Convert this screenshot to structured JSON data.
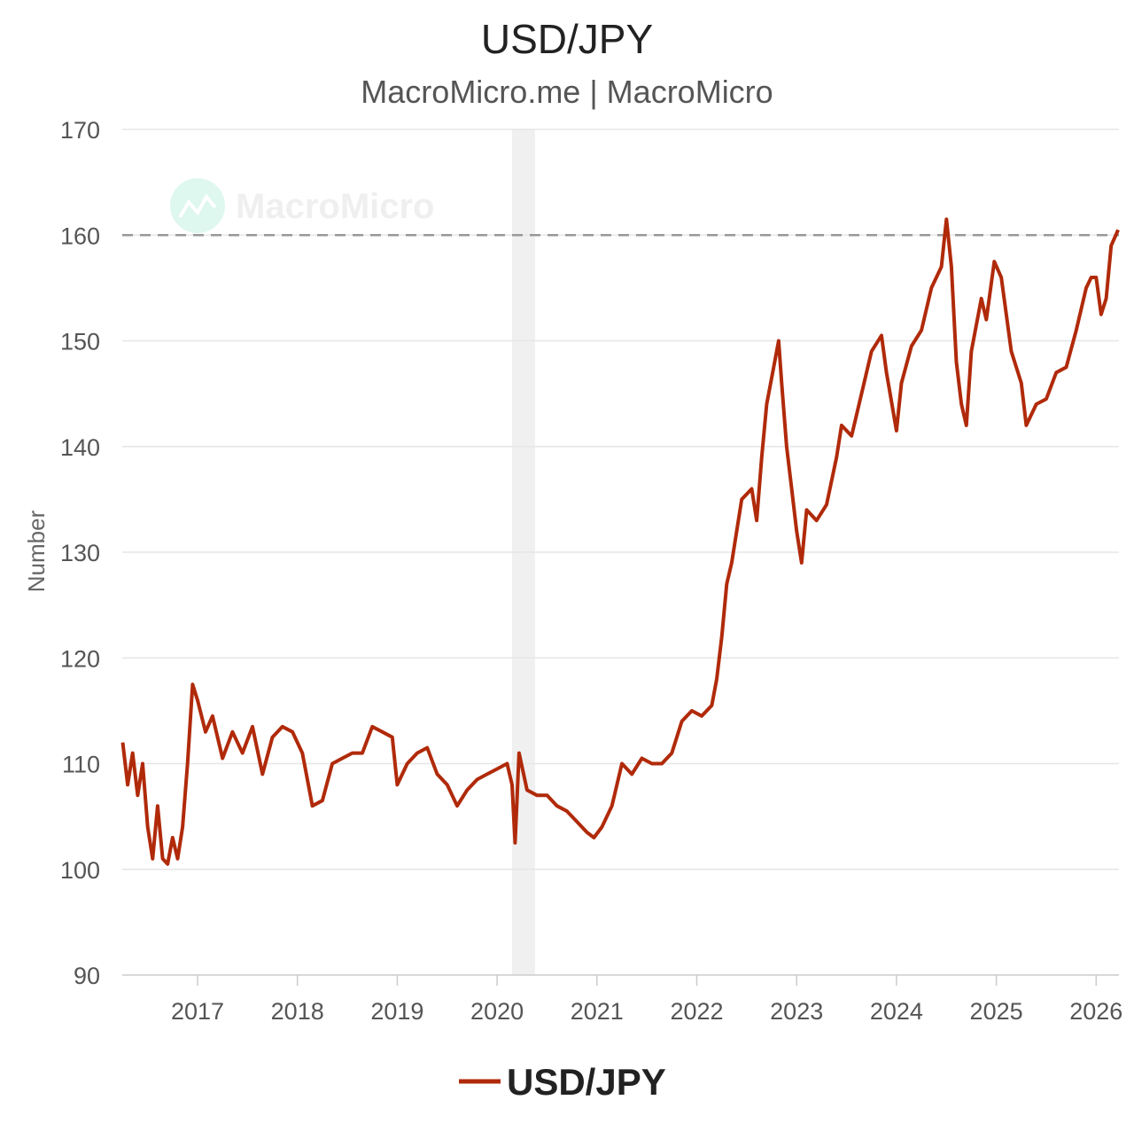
{
  "chart_data": {
    "type": "line",
    "title": "USD/JPY",
    "subtitle": "MacroMicro.me | MacroMicro",
    "watermark": "MacroMicro",
    "ylabel": "Number",
    "xlabel": "",
    "ylim": [
      90,
      170
    ],
    "xlim": [
      2016.25,
      2026.23
    ],
    "yticks": [
      90,
      100,
      110,
      120,
      130,
      140,
      150,
      160,
      170
    ],
    "xticks": [
      "2017",
      "2018",
      "2019",
      "2020",
      "2021",
      "2022",
      "2023",
      "2024",
      "2025",
      "2026"
    ],
    "grid": true,
    "legend_placement": "bottom",
    "reference_line": {
      "value": 160,
      "style": "dashed",
      "color": "#999999"
    },
    "shaded_period": {
      "start": 2020.15,
      "end": 2020.38,
      "color": "#f0f0f0"
    },
    "series": [
      {
        "name": "USD/JPY",
        "color": "#b02a0a",
        "x": [
          2016.25,
          2016.3,
          2016.35,
          2016.4,
          2016.45,
          2016.5,
          2016.55,
          2016.6,
          2016.65,
          2016.7,
          2016.75,
          2016.8,
          2016.85,
          2016.9,
          2016.95,
          2017.0,
          2017.08,
          2017.15,
          2017.25,
          2017.35,
          2017.45,
          2017.55,
          2017.65,
          2017.75,
          2017.85,
          2017.95,
          2018.05,
          2018.15,
          2018.25,
          2018.35,
          2018.45,
          2018.55,
          2018.65,
          2018.75,
          2018.85,
          2018.95,
          2019.0,
          2019.1,
          2019.2,
          2019.3,
          2019.4,
          2019.5,
          2019.6,
          2019.7,
          2019.8,
          2019.9,
          2020.0,
          2020.1,
          2020.15,
          2020.18,
          2020.22,
          2020.3,
          2020.4,
          2020.5,
          2020.6,
          2020.7,
          2020.8,
          2020.9,
          2020.97,
          2021.05,
          2021.15,
          2021.25,
          2021.35,
          2021.45,
          2021.55,
          2021.65,
          2021.75,
          2021.85,
          2021.95,
          2022.05,
          2022.15,
          2022.2,
          2022.25,
          2022.3,
          2022.35,
          2022.45,
          2022.55,
          2022.6,
          2022.65,
          2022.7,
          2022.78,
          2022.82,
          2022.85,
          2022.9,
          2022.95,
          2023.0,
          2023.05,
          2023.1,
          2023.2,
          2023.3,
          2023.4,
          2023.45,
          2023.55,
          2023.65,
          2023.75,
          2023.85,
          2023.9,
          2024.0,
          2024.05,
          2024.15,
          2024.25,
          2024.35,
          2024.45,
          2024.5,
          2024.55,
          2024.6,
          2024.65,
          2024.7,
          2024.75,
          2024.85,
          2024.9,
          2024.98,
          2025.05,
          2025.15,
          2025.25,
          2025.3,
          2025.4,
          2025.5,
          2025.6,
          2025.7,
          2025.8,
          2025.9,
          2025.95,
          2026.0,
          2026.05,
          2026.1,
          2026.15,
          2026.22
        ],
        "values": [
          112,
          108,
          111,
          107,
          110,
          104,
          101,
          106,
          101,
          100.5,
          103,
          101,
          104,
          110,
          117.5,
          116,
          113,
          114.5,
          110.5,
          113,
          111,
          113.5,
          109,
          112.5,
          113.5,
          113,
          111,
          106,
          106.5,
          110,
          110.5,
          111,
          111,
          113.5,
          113,
          112.5,
          108,
          110,
          111,
          111.5,
          109,
          108,
          106,
          107.5,
          108.5,
          109,
          109.5,
          110,
          108,
          102.5,
          111,
          107.5,
          107,
          107,
          106,
          105.5,
          104.5,
          103.5,
          103,
          104,
          106,
          110,
          109,
          110.5,
          110,
          110,
          111,
          114,
          115,
          114.5,
          115.5,
          118,
          122,
          127,
          129,
          135,
          136,
          133,
          139,
          144,
          148,
          150,
          146,
          140,
          136,
          132,
          129,
          134,
          133,
          134.5,
          139,
          142,
          141,
          145,
          149,
          150.5,
          147,
          141.5,
          146,
          149.5,
          151,
          155,
          157,
          161.5,
          157,
          148,
          144,
          142,
          149,
          154,
          152,
          157.5,
          156,
          149,
          146,
          142,
          144,
          144.5,
          147,
          147.5,
          151,
          155,
          156,
          156,
          152.5,
          154,
          159,
          160.5
        ]
      }
    ]
  }
}
